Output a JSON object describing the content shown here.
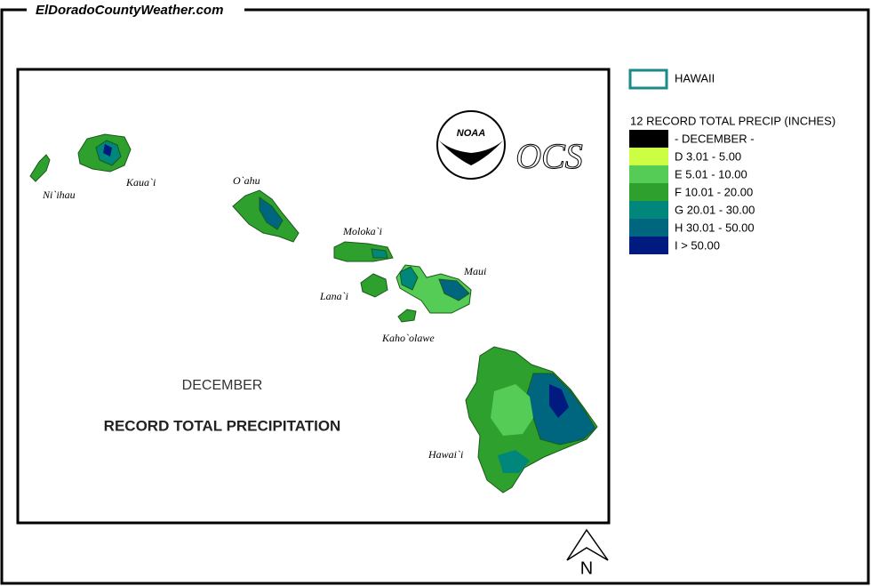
{
  "site": "ElDoradoCountyWeather.com",
  "map": {
    "month": "DECEMBER",
    "title": "RECORD TOTAL PRECIPITATION",
    "islands": [
      "Ni`ihau",
      "Kaua`i",
      "O`ahu",
      "Moloka`i",
      "Lana`i",
      "Maui",
      "Kaho`olawe",
      "Hawai`i"
    ],
    "logos": [
      "NOAA",
      "OCS"
    ],
    "north": "N"
  },
  "legend": {
    "state": "HAWAII",
    "title": "12 RECORD TOTAL PRECIP (INCHES)",
    "items": [
      {
        "color": "#000000",
        "label": "- DECEMBER -"
      },
      {
        "color": "#ccff44",
        "label": "D 3.01 - 5.00"
      },
      {
        "color": "#55cc55",
        "label": "E 5.01 - 10.00"
      },
      {
        "color": "#2ea02e",
        "label": "F 10.01 - 20.00"
      },
      {
        "color": "#00867a",
        "label": "G 20.01 - 30.00"
      },
      {
        "color": "#006680",
        "label": "H 30.01 - 50.00"
      },
      {
        "color": "#001a80",
        "label": "I > 50.00"
      }
    ]
  }
}
